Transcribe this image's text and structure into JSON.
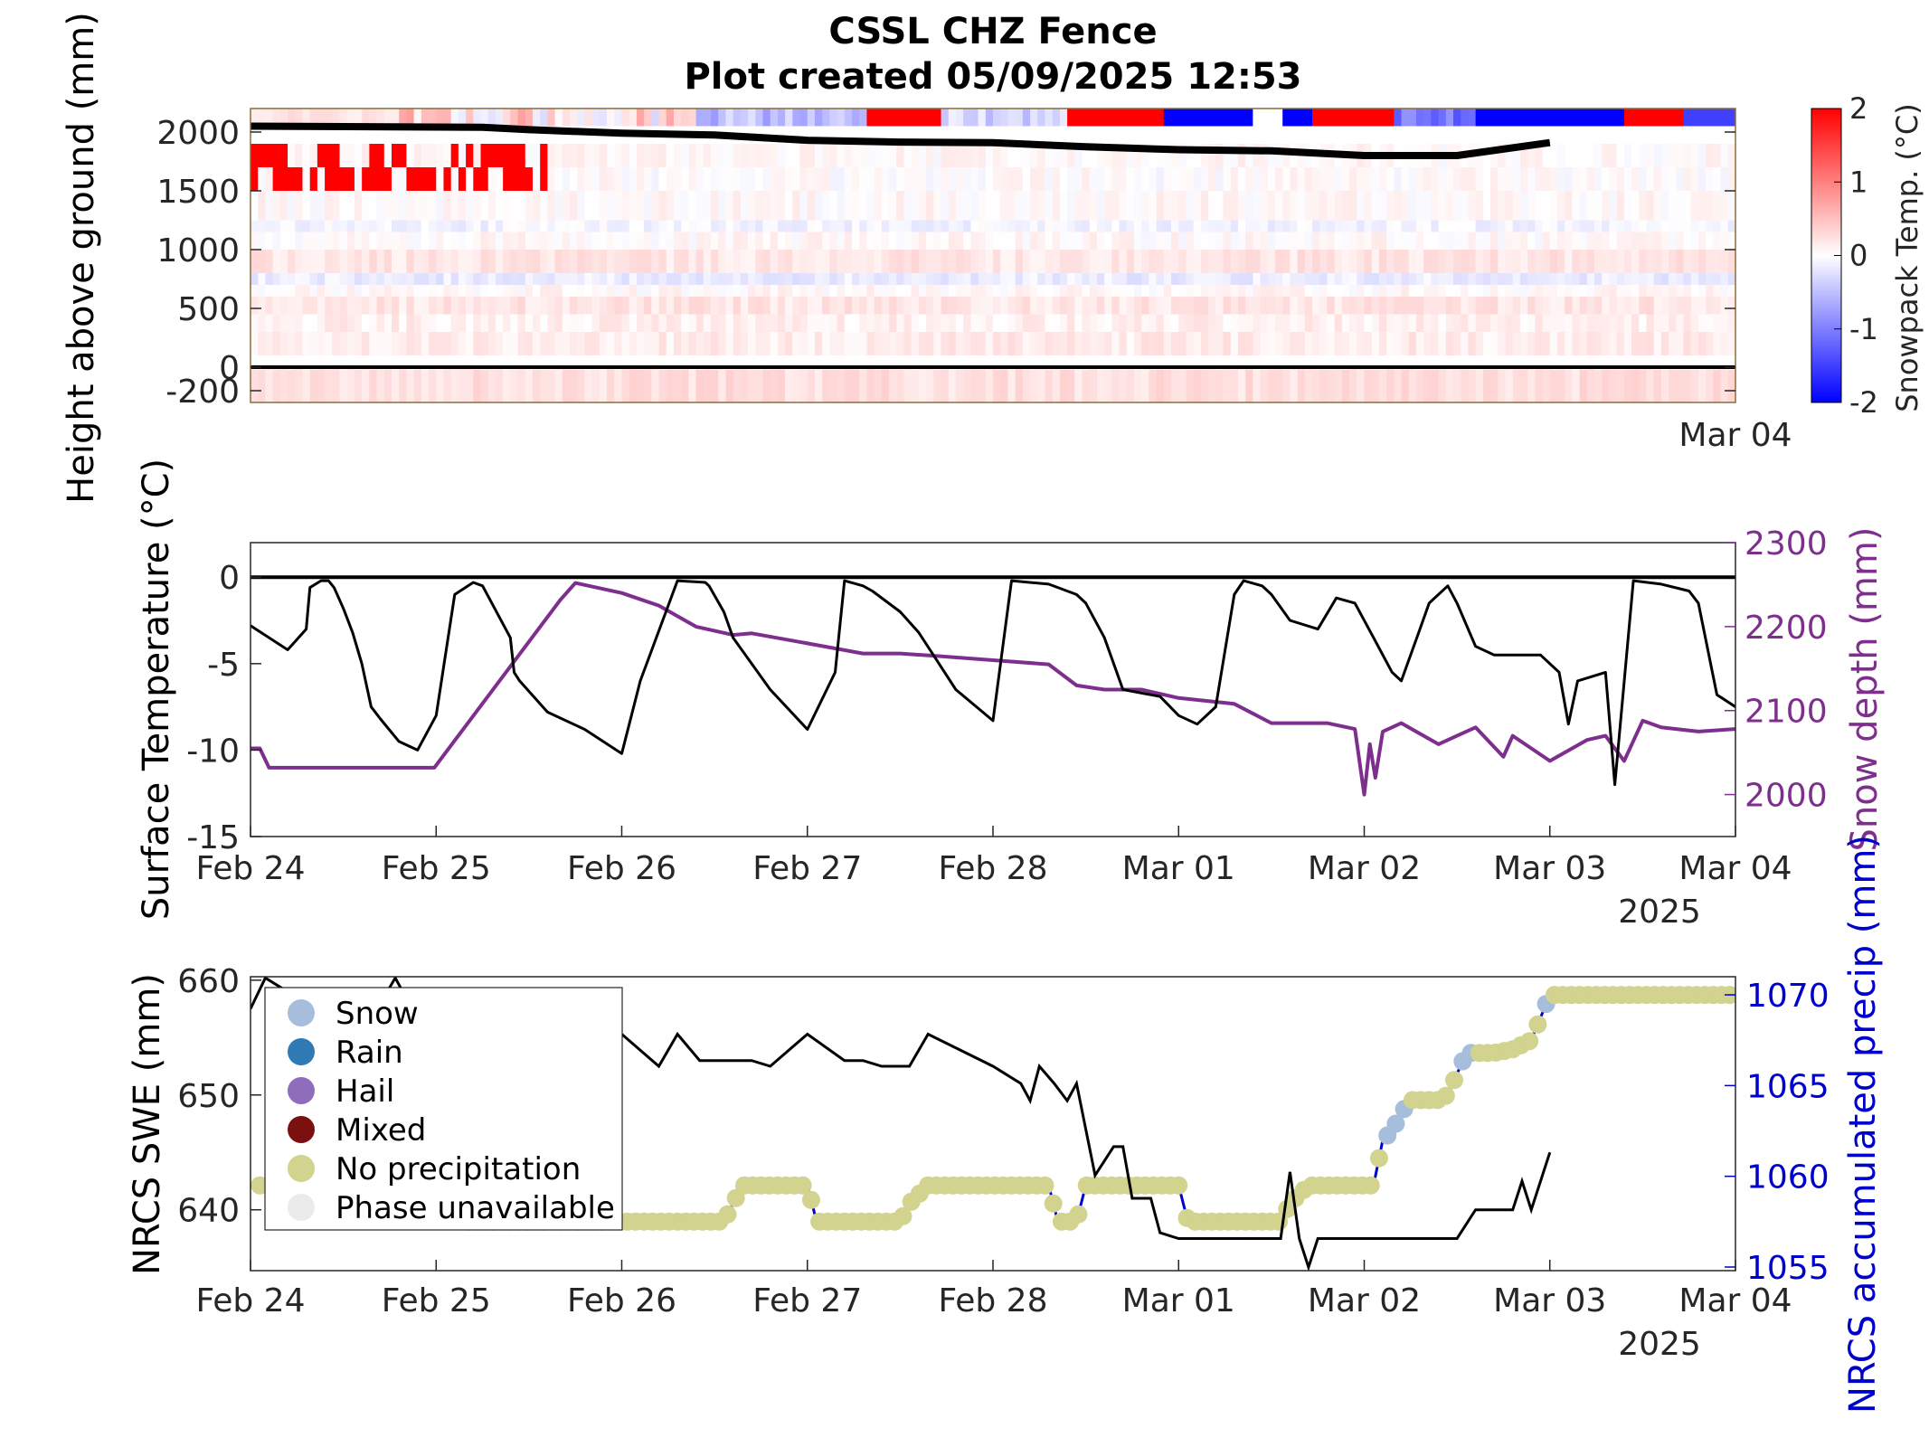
{
  "title": {
    "line1": "CSSL CHZ Fence",
    "line2": "Plot created 05/09/2025 12:53"
  },
  "colors": {
    "warm": "#ff0000",
    "cold": "#0000ff",
    "snow_depth": "#7e2f8e",
    "precip_axis": "#0000cc",
    "black": "#000000"
  },
  "chart_data": [
    {
      "type": "heatmap",
      "ylabel": "Height above ground (mm)",
      "yticks": [
        "2000",
        "1500",
        "1000",
        "500",
        "0",
        "-200"
      ],
      "ytick_values": [
        2000,
        1500,
        1000,
        500,
        0,
        -200
      ],
      "ylim": [
        -300,
        2200
      ],
      "xticks": [
        "Mar 04"
      ],
      "xlim_days": "Feb 24 to Mar 04",
      "colorbar": {
        "label": "Snowpack Temp. (°C)",
        "ticks": [
          "2",
          "1",
          "0",
          "-1",
          "-2"
        ],
        "range": [
          -2,
          2
        ],
        "colormap": "blue-white-red"
      },
      "snow_surface_line": {
        "x": [
          "Feb 24 00:00",
          "Feb 25 06:00",
          "Feb 25 12:00",
          "Feb 26 00:00",
          "Feb 26 12:00",
          "Feb 27 00:00",
          "Feb 27 12:00",
          "Feb 28 00:00",
          "Feb 28 12:00",
          "Mar 01 00:00",
          "Mar 01 12:00",
          "Mar 02 00:00",
          "Mar 02 12:00",
          "Mar 03 00:00"
        ],
        "y": [
          2050,
          2040,
          2020,
          1990,
          1975,
          1930,
          1915,
          1910,
          1875,
          1850,
          1840,
          1800,
          1800,
          1910
        ]
      },
      "ground_line_y": 0
    },
    {
      "type": "line",
      "ylabel": "Surface Temperature (°C)",
      "y2label": "Snow depth (mm)",
      "yticks": [
        "0",
        "-5",
        "-10",
        "-15"
      ],
      "ylim": [
        -15,
        2
      ],
      "y2ticks": [
        "2300",
        "2200",
        "2100",
        "2000"
      ],
      "y2lim": [
        1950,
        2300
      ],
      "xticks": [
        "Feb 24",
        "Feb 25",
        "Feb 26",
        "Feb 27",
        "Feb 28",
        "Mar 01",
        "Mar 02",
        "Mar 03",
        "Mar 04"
      ],
      "year_label": "2025",
      "series": [
        {
          "axis": "left",
          "x_days": [
            0,
            0.1,
            0.2,
            0.3,
            0.32,
            0.38,
            0.42,
            0.45,
            0.5,
            0.55,
            0.6,
            0.65,
            0.7,
            0.8,
            0.9,
            1.0,
            1.1,
            1.2,
            1.25,
            1.4,
            1.42,
            1.45,
            1.6,
            1.8,
            2.0,
            2.1,
            2.3,
            2.45,
            2.47,
            2.55,
            2.6,
            2.8,
            3.0,
            3.15,
            3.2,
            3.3,
            3.35,
            3.5,
            3.6,
            3.8,
            4.0,
            4.1,
            4.3,
            4.45,
            4.5,
            4.6,
            4.7,
            4.9,
            5.0,
            5.1,
            5.2,
            5.3,
            5.35,
            5.45,
            5.5,
            5.6,
            5.75,
            5.85,
            5.95,
            6.05,
            6.15,
            6.2,
            6.3,
            6.35,
            6.45,
            6.5,
            6.6,
            6.7,
            6.8,
            6.95,
            7.05,
            7.1,
            7.15,
            7.3,
            7.35,
            7.45,
            7.6,
            7.75,
            7.8,
            7.9,
            8.0
          ],
          "values": [
            -2.8,
            -3.5,
            -4.2,
            -3.0,
            -0.6,
            -0.2,
            -0.2,
            -0.6,
            -1.8,
            -3.2,
            -5.0,
            -7.5,
            -8.2,
            -9.5,
            -10.0,
            -8.0,
            -1.0,
            -0.3,
            -0.5,
            -3.5,
            -5.5,
            -6.0,
            -7.8,
            -8.8,
            -10.2,
            -6.0,
            -0.2,
            -0.3,
            -0.5,
            -2.0,
            -3.5,
            -6.5,
            -8.8,
            -5.5,
            -0.2,
            -0.5,
            -0.8,
            -2.0,
            -3.2,
            -6.5,
            -8.3,
            -0.2,
            -0.4,
            -1.0,
            -1.5,
            -3.5,
            -6.5,
            -6.9,
            -8.0,
            -8.5,
            -7.5,
            -1.0,
            -0.2,
            -0.5,
            -1.0,
            -2.5,
            -3.0,
            -1.2,
            -1.5,
            -3.5,
            -5.5,
            -6.0,
            -3.0,
            -1.5,
            -0.5,
            -1.5,
            -4.0,
            -4.5,
            -4.5,
            -4.5,
            -5.5,
            -8.5,
            -6.0,
            -5.5,
            -12.0,
            -0.2,
            -0.4,
            -0.8,
            -1.5,
            -6.8,
            -7.5
          ]
        },
        {
          "axis": "right",
          "name": "Snow depth",
          "x_days": [
            0,
            0.05,
            0.1,
            0.99,
            1.67,
            1.75,
            2.0,
            2.2,
            2.4,
            2.6,
            2.7,
            3.0,
            3.3,
            3.5,
            3.7,
            4.0,
            4.3,
            4.45,
            4.6,
            4.8,
            5.0,
            5.3,
            5.5,
            5.65,
            5.8,
            5.95,
            6.0,
            6.03,
            6.06,
            6.1,
            6.2,
            6.4,
            6.5,
            6.6,
            6.75,
            6.8,
            7.0,
            7.2,
            7.3,
            7.4,
            7.5,
            7.6,
            7.8,
            8.0
          ],
          "values": [
            2055,
            2055,
            2032,
            2032,
            2232,
            2252,
            2240,
            2225,
            2200,
            2190,
            2192,
            2180,
            2168,
            2168,
            2165,
            2160,
            2155,
            2130,
            2125,
            2125,
            2115,
            2108,
            2085,
            2085,
            2085,
            2078,
            2000,
            2060,
            2020,
            2075,
            2085,
            2060,
            2070,
            2080,
            2045,
            2070,
            2040,
            2065,
            2070,
            2040,
            2088,
            2080,
            2075,
            2078
          ]
        }
      ]
    },
    {
      "type": "line",
      "ylabel": "NRCS SWE (mm)",
      "y2label": "NRCS accumulated precip (mm)",
      "yticks": [
        "660",
        "650",
        "640"
      ],
      "ylim": [
        634.7,
        660.3
      ],
      "y2ticks": [
        "1070",
        "1065",
        "1060",
        "1055"
      ],
      "y2lim": [
        1054.8,
        1071.0
      ],
      "xticks": [
        "Feb 24",
        "Feb 25",
        "Feb 26",
        "Feb 27",
        "Feb 28",
        "Mar 01",
        "Mar 02",
        "Mar 03",
        "Mar 04"
      ],
      "year_label": "2025",
      "legend": {
        "placement": "top-left",
        "entries": [
          {
            "label": "Snow",
            "color": "#a6bddb"
          },
          {
            "label": "Rain",
            "color": "#2f7ab5"
          },
          {
            "label": "Hail",
            "color": "#8e6dbd"
          },
          {
            "label": "Mixed",
            "color": "#7a1010"
          },
          {
            "label": "No precipitation",
            "color": "#d2d38e"
          },
          {
            "label": "Phase unavailable",
            "color": "#ebebeb"
          }
        ]
      },
      "series": [
        {
          "axis": "left",
          "name": "NRCS SWE",
          "x_days": [
            0,
            0.08,
            0.2,
            0.7,
            0.78,
            0.82,
            0.86,
            0.9,
            1.0,
            2.0,
            2.2,
            2.3,
            2.42,
            2.7,
            2.8,
            3.0,
            3.2,
            3.3,
            3.4,
            3.55,
            3.65,
            4.0,
            4.15,
            4.2,
            4.25,
            4.33,
            4.4,
            4.45,
            4.55,
            4.65,
            4.7,
            4.75,
            4.85,
            4.9,
            5.0,
            5.25,
            5.35,
            5.45,
            5.55,
            5.6,
            5.65,
            5.7,
            5.75,
            5.85,
            5.95,
            6.0,
            6.2,
            6.4,
            6.5,
            6.6,
            6.8,
            6.85,
            6.9,
            7.0
          ],
          "values": [
            657.5,
            660.2,
            659.0,
            658.0,
            660.2,
            659.0,
            658.0,
            657.0,
            655.3,
            655.3,
            652.5,
            655.3,
            653.0,
            653.0,
            652.5,
            655.3,
            653.0,
            653.0,
            652.5,
            652.5,
            655.3,
            652.5,
            651.0,
            649.5,
            652.5,
            651.0,
            649.5,
            651.0,
            643.0,
            645.5,
            645.5,
            641.0,
            641.0,
            638.0,
            637.5,
            637.5,
            637.5,
            637.5,
            637.5,
            643.3,
            637.5,
            635.0,
            637.5,
            637.5,
            637.5,
            637.5,
            637.5,
            637.5,
            637.5,
            640.0,
            640.0,
            642.5,
            640.0,
            645.0
          ]
        },
        {
          "axis": "right",
          "name": "NRCS accumulated precip",
          "x_days": [
            0,
            1.0,
            1.15,
            1.95,
            2.1,
            2.55,
            2.6,
            2.65,
            3.0,
            3.05,
            3.5,
            3.55,
            3.65,
            3.7,
            4.0,
            4.3,
            4.35,
            4.45,
            4.5,
            4.65,
            5.0,
            5.05,
            5.55,
            5.6,
            5.7,
            6.05,
            6.1,
            6.15,
            6.2,
            6.25,
            6.4,
            6.45,
            6.55,
            6.6,
            6.7,
            6.8,
            6.9,
            7.0,
            8.0
          ],
          "values": [
            1059.5,
            1059.5,
            1057.5,
            1057.5,
            1057.5,
            1057.5,
            1058.5,
            1059.5,
            1059.5,
            1057.5,
            1057.5,
            1058.5,
            1059.5,
            1059.5,
            1059.5,
            1059.5,
            1057.5,
            1057.5,
            1059.5,
            1059.5,
            1059.5,
            1057.5,
            1057.5,
            1058.5,
            1059.5,
            1059.5,
            1062.0,
            1062.5,
            1063.5,
            1064.2,
            1064.2,
            1064.5,
            1066.8,
            1066.8,
            1066.8,
            1067.0,
            1067.5,
            1070.0,
            1070.0
          ]
        }
      ]
    }
  ]
}
